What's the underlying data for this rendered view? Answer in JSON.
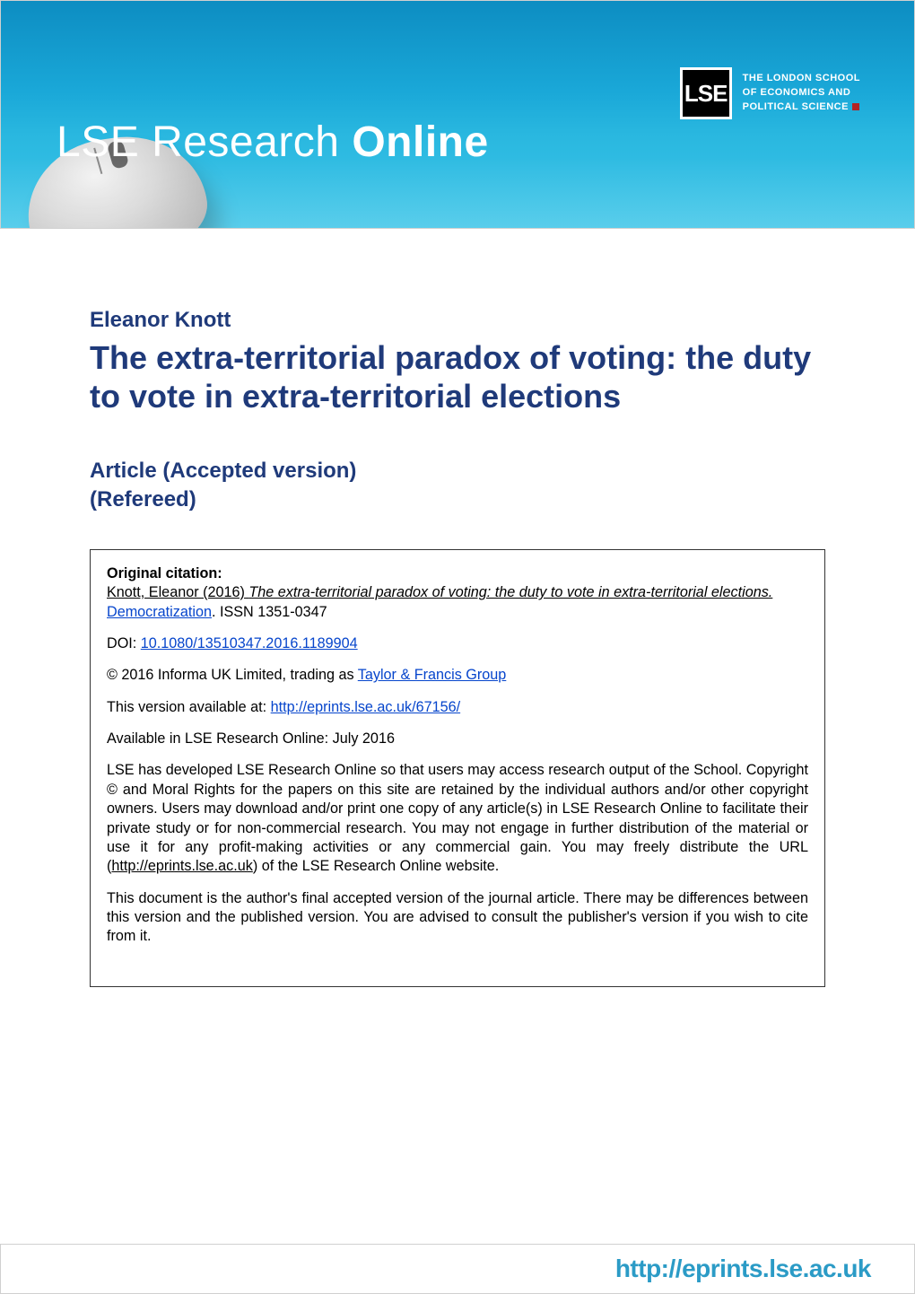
{
  "banner": {
    "title_prefix": "LSE Research ",
    "title_bold": "Online",
    "logo_text": "LSE",
    "org_line1": "THE LONDON SCHOOL",
    "org_line2": "OF ECONOMICS AND",
    "org_line3": "POLITICAL SCIENCE",
    "bg_grad_top": "#0d8dc2",
    "bg_grad_bottom": "#3cc5e8",
    "accent_red": "#b22222"
  },
  "paper": {
    "author": "Eleanor Knott",
    "title": "The extra-territorial paradox of voting: the duty to vote in extra-territorial elections",
    "article_type_line1": "Article (Accepted version)",
    "article_type_line2": "(Refereed)"
  },
  "citation": {
    "label": "Original citation:",
    "author_year": "Knott, Eleanor (2016) ",
    "title_ital": "The extra-territorial paradox of voting: the duty to vote in extra-territorial elections.",
    "journal": "Democratization",
    "issn": ". ISSN 1351-0347",
    "doi_label": "DOI: ",
    "doi": "10.1080/13510347.2016.1189904",
    "copyright_prefix": "© 2016 Informa UK Limited, trading as ",
    "publisher": "Taylor & Francis Group",
    "version_prefix": "This version available at: ",
    "version_url": "http://eprints.lse.ac.uk/67156/",
    "available_in": "Available in LSE Research Online: July 2016",
    "blurb_part1": "LSE has developed LSE Research Online so that users may access research output of the School. Copyright © and Moral Rights for the papers on this site are retained by the individual authors and/or other copyright owners. Users may download and/or print one copy of any article(s) in LSE Research Online to facilitate their private study or for non-commercial research. You may not engage in further distribution of the material or use it for any profit-making activities or any commercial gain. You may freely distribute the URL (",
    "blurb_url": "http://eprints.lse.ac.uk",
    "blurb_part2": ") of the LSE Research Online website.",
    "disclaimer": "This document is the author's final accepted version of the journal article. There may be differences between this version and the published version.  You are advised to consult the publisher's version if you wish to cite from it."
  },
  "footer": {
    "url": "http://eprints.lse.ac.uk"
  },
  "colors": {
    "heading": "#1f3a7a",
    "link": "#0645cc",
    "footer_url": "#2b9bc6",
    "border": "#333333"
  }
}
